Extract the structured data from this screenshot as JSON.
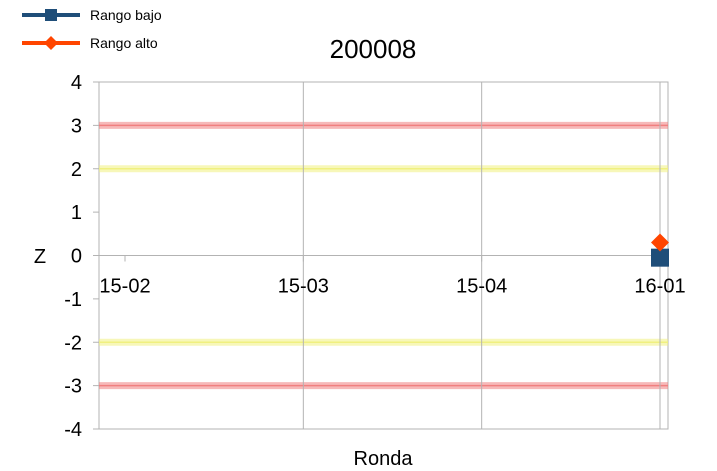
{
  "chart_data": {
    "type": "line",
    "title": "200008",
    "xlabel": "Ronda",
    "ylabel": "Z",
    "ylim": [
      -4,
      4
    ],
    "yticks": [
      4,
      3,
      2,
      1,
      0,
      -1,
      -2,
      -3,
      -4
    ],
    "categories": [
      "15-02",
      "15-03",
      "15-04",
      "16-01"
    ],
    "series": [
      {
        "name": "Rango bajo",
        "color": "#1f4e79",
        "marker": "square",
        "values": [
          null,
          null,
          null,
          -0.05
        ]
      },
      {
        "name": "Rango alto",
        "color": "#ff4500",
        "marker": "diamond",
        "values": [
          null,
          null,
          null,
          0.3
        ]
      }
    ],
    "reference_lines": [
      {
        "value": 3,
        "color": "#f08080"
      },
      {
        "value": 2,
        "color": "#f0f080"
      },
      {
        "value": -2,
        "color": "#f0f080"
      },
      {
        "value": -3,
        "color": "#f08080"
      }
    ],
    "grid": "vertical",
    "legend_position": "top-left"
  }
}
